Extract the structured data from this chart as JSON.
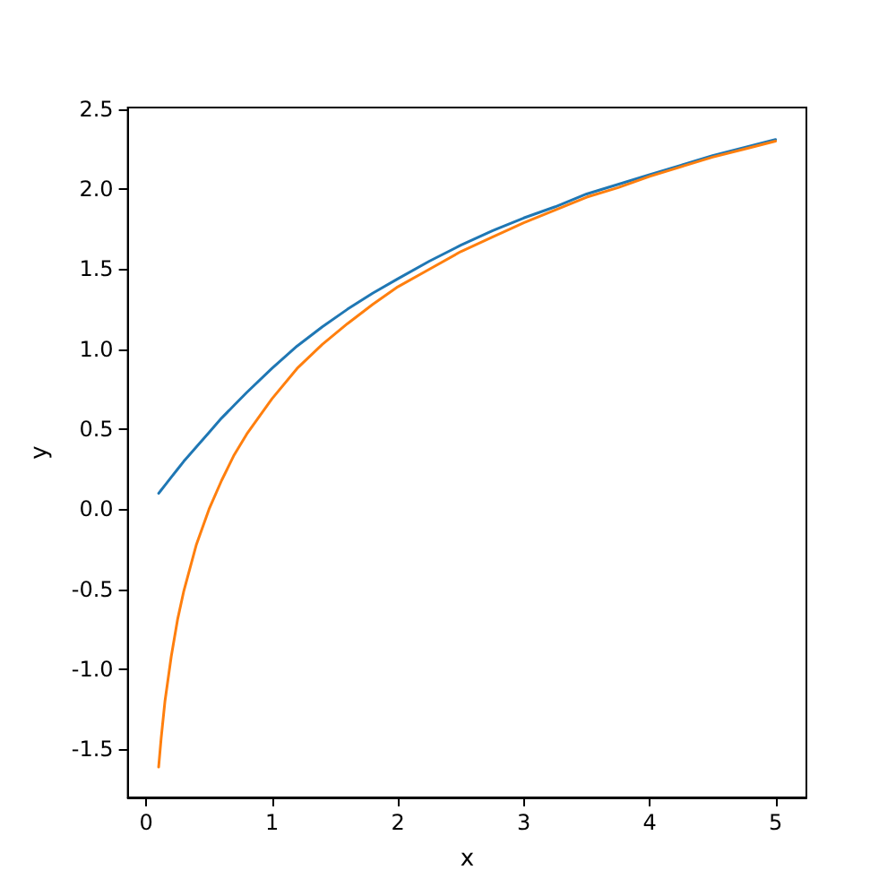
{
  "chart_data": {
    "type": "line",
    "xlabel": "x",
    "ylabel": "y",
    "x": [
      0.1,
      0.12,
      0.15,
      0.2,
      0.25,
      0.3,
      0.4,
      0.5,
      0.6,
      0.7,
      0.8,
      1.0,
      1.2,
      1.4,
      1.6,
      1.8,
      2.0,
      2.25,
      2.5,
      2.75,
      3.0,
      3.25,
      3.5,
      3.75,
      4.0,
      4.25,
      4.5,
      4.75,
      5.0
    ],
    "series": [
      {
        "color": "#1f77b4",
        "values": [
          0.1,
          0.12,
          0.15,
          0.2,
          0.25,
          0.3,
          0.39,
          0.48,
          0.57,
          0.65,
          0.73,
          0.88,
          1.02,
          1.14,
          1.25,
          1.35,
          1.44,
          1.55,
          1.65,
          1.74,
          1.82,
          1.89,
          1.97,
          2.03,
          2.09,
          2.15,
          2.21,
          2.26,
          2.31
        ]
      },
      {
        "color": "#ff7f0e",
        "values": [
          -1.61,
          -1.43,
          -1.2,
          -0.92,
          -0.69,
          -0.51,
          -0.22,
          0.0,
          0.18,
          0.34,
          0.47,
          0.69,
          0.88,
          1.03,
          1.16,
          1.28,
          1.39,
          1.5,
          1.61,
          1.7,
          1.79,
          1.87,
          1.95,
          2.01,
          2.08,
          2.14,
          2.2,
          2.25,
          2.3
        ]
      }
    ],
    "xlim": [
      -0.145,
      5.245
    ],
    "xticks": [
      0,
      1,
      2,
      3,
      4,
      5
    ],
    "ylim": [
      -1.8,
      2.51
    ],
    "yticks": [
      -1.5,
      {
        "value": -1,
        "label": "-1.0"
      },
      -0.5,
      {
        "value": 0,
        "label": "0.0"
      },
      0.5,
      {
        "value": 1,
        "label": "1.0"
      },
      1.5,
      {
        "value": 2,
        "label": "2.0"
      },
      2.5
    ],
    "marker": "none",
    "line_style": "solid"
  }
}
